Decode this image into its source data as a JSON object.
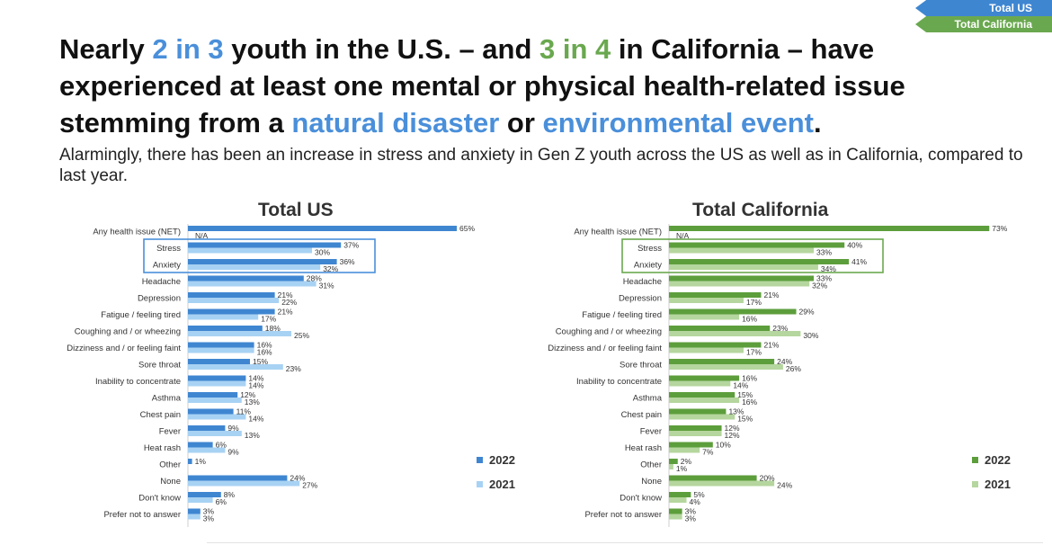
{
  "corner_tabs": {
    "us": "Total US",
    "ca": "Total California"
  },
  "headline": {
    "p1": "Nearly ",
    "h1": "2 in 3",
    "p2": " youth in the U.S. – and ",
    "h2": "3 in 4",
    "p3": " in California – have experienced at least one mental or physical health-related issue stemming from a ",
    "h3": "natural disaster",
    "p4": " or ",
    "h4": "environmental event",
    "p5": "."
  },
  "subtitle": "Alarmingly, there has been an increase in stress and anxiety in Gen Z youth across the US as well as in California, compared to last year.",
  "colors": {
    "us2022": "#3f86d1",
    "us2021": "#a8d2f3",
    "ca2022": "#5d9e3c",
    "ca2021": "#b5d69e",
    "us_box": "#4a8fda",
    "ca_box": "#6aa84f"
  },
  "chart_data": [
    {
      "type": "bar",
      "orientation": "horizontal",
      "title": "Total US",
      "categories": [
        "Any health issue (NET)",
        "Stress",
        "Anxiety",
        "Headache",
        "Depression",
        "Fatigue / feeling tired",
        "Coughing and / or wheezing",
        "Dizziness and / or feeling faint",
        "Sore throat",
        "Inability to concentrate",
        "Asthma",
        "Chest pain",
        "Fever",
        "Heat rash",
        "Other",
        "None",
        "Don't know",
        "Prefer not to answer"
      ],
      "series": [
        {
          "name": "2022",
          "values": [
            65,
            37,
            36,
            28,
            21,
            21,
            18,
            16,
            15,
            14,
            12,
            11,
            9,
            6,
            1,
            24,
            8,
            3
          ]
        },
        {
          "name": "2021",
          "values": [
            null,
            30,
            32,
            31,
            22,
            17,
            25,
            16,
            23,
            14,
            13,
            14,
            13,
            9,
            null,
            27,
            6,
            3
          ]
        }
      ],
      "value_labels_2021": [
        "N/A",
        "30%",
        "32%",
        "31%",
        "22%",
        "17%",
        "25%",
        "16%",
        "23%",
        "14%",
        "13%",
        "14%",
        "13%",
        "9%",
        "",
        "27%",
        "6%",
        "3%"
      ],
      "value_labels_2022": [
        "65%",
        "37%",
        "36%",
        "28%",
        "21%",
        "21%",
        "18%",
        "16%",
        "15%",
        "14%",
        "12%",
        "11%",
        "9%",
        "6%",
        "1%",
        "24%",
        "8%",
        "3%"
      ],
      "legend": [
        "2022",
        "2021"
      ],
      "legend_position": "right",
      "highlighted": [
        "Stress",
        "Anxiety"
      ],
      "xlim": [
        0,
        70
      ]
    },
    {
      "type": "bar",
      "orientation": "horizontal",
      "title": "Total California",
      "categories": [
        "Any health issue (NET)",
        "Stress",
        "Anxiety",
        "Headache",
        "Depression",
        "Fatigue / feeling tired",
        "Coughing and / or wheezing",
        "Dizziness and / or feeling faint",
        "Sore throat",
        "Inability to concentrate",
        "Asthma",
        "Chest pain",
        "Fever",
        "Heat rash",
        "Other",
        "None",
        "Don't know",
        "Prefer not to answer"
      ],
      "series": [
        {
          "name": "2022",
          "values": [
            73,
            40,
            41,
            33,
            21,
            29,
            23,
            21,
            24,
            16,
            15,
            13,
            12,
            10,
            2,
            20,
            5,
            3
          ]
        },
        {
          "name": "2021",
          "values": [
            null,
            33,
            34,
            32,
            17,
            16,
            30,
            17,
            26,
            14,
            16,
            15,
            12,
            7,
            1,
            24,
            4,
            3
          ]
        }
      ],
      "value_labels_2021": [
        "N/A",
        "33%",
        "34%",
        "32%",
        "17%",
        "16%",
        "30%",
        "17%",
        "26%",
        "14%",
        "16%",
        "15%",
        "12%",
        "7%",
        "1%",
        "24%",
        "4%",
        "3%"
      ],
      "value_labels_2022": [
        "73%",
        "40%",
        "41%",
        "33%",
        "21%",
        "29%",
        "23%",
        "21%",
        "24%",
        "16%",
        "15%",
        "13%",
        "12%",
        "10%",
        "2%",
        "20%",
        "5%",
        "3%"
      ],
      "legend": [
        "2022",
        "2021"
      ],
      "legend_position": "right",
      "highlighted": [
        "Stress",
        "Anxiety"
      ],
      "xlim": [
        0,
        75
      ]
    }
  ]
}
